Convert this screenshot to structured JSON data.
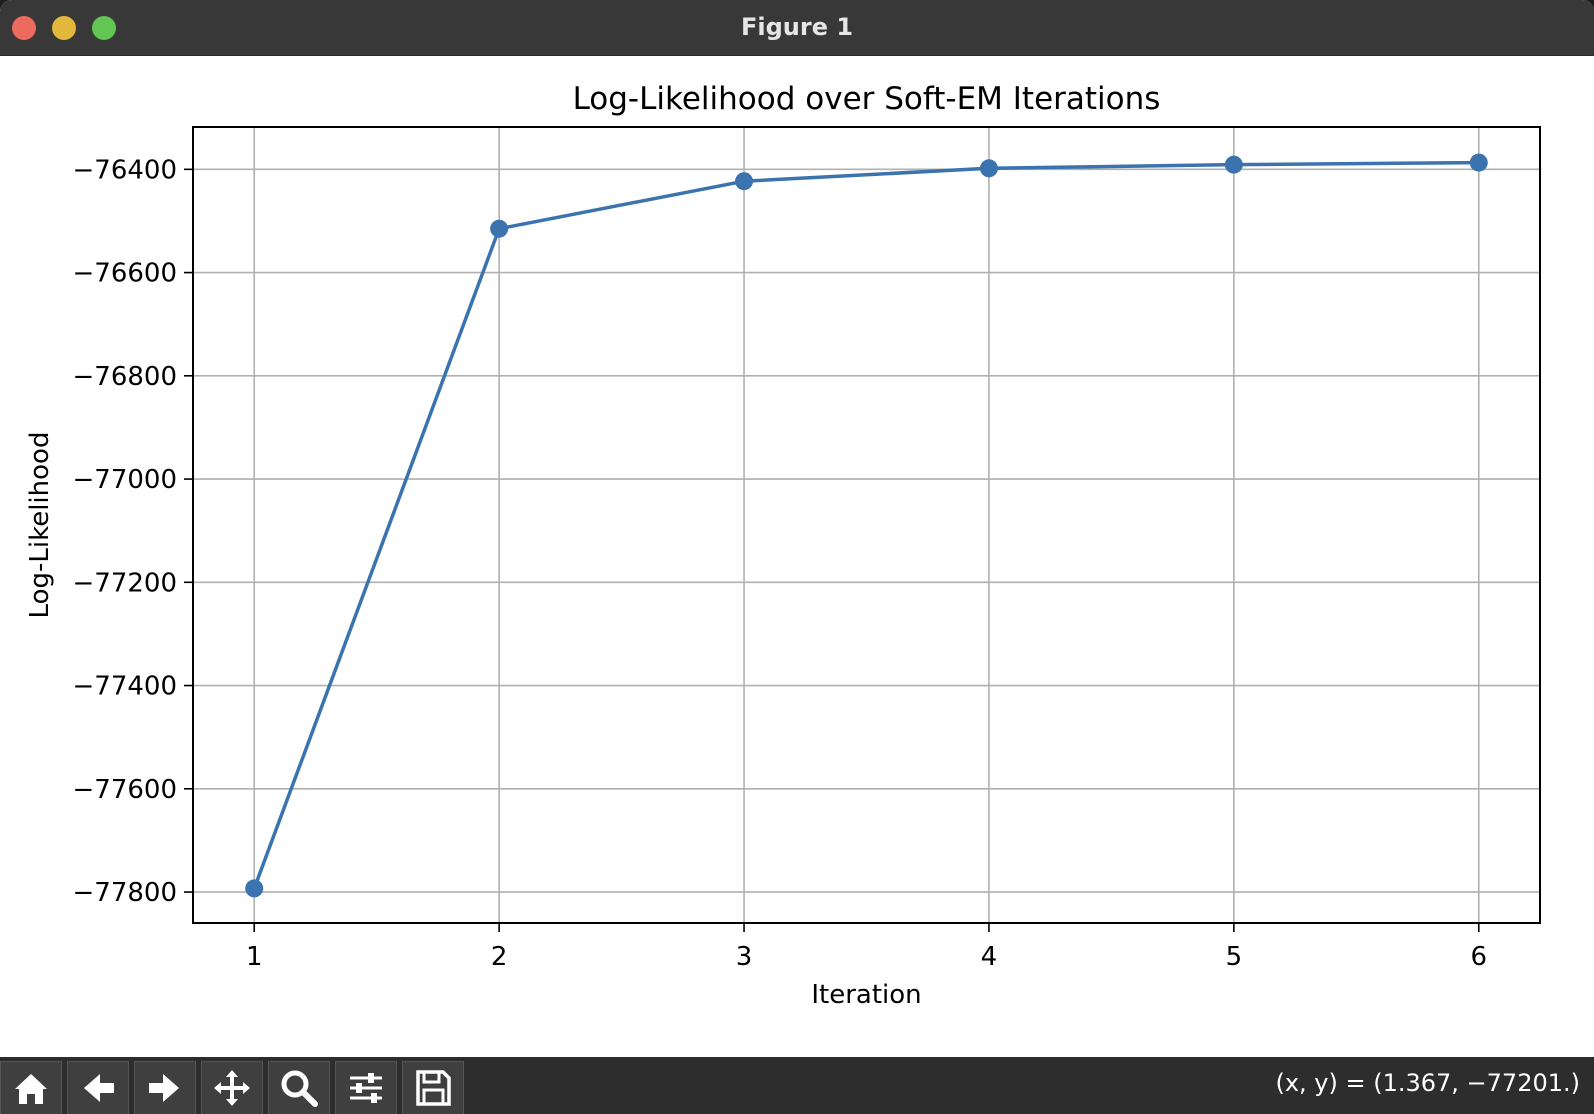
{
  "window": {
    "title": "Figure 1"
  },
  "chart_data": {
    "type": "line",
    "title": "Log-Likelihood over Soft-EM Iterations",
    "xlabel": "Iteration",
    "ylabel": "Log-Likelihood",
    "x": [
      1,
      2,
      3,
      4,
      5,
      6
    ],
    "series": [
      {
        "name": "",
        "values": [
          -77793,
          -76515,
          -76423,
          -76398,
          -76391,
          -76387
        ],
        "color": "#3a73ad",
        "marker": "circle"
      }
    ],
    "xlim": [
      0.75,
      6.25
    ],
    "ylim": [
      -77860,
      -76318
    ],
    "xticks": [
      1,
      2,
      3,
      4,
      5,
      6
    ],
    "xtick_labels": [
      "1",
      "2",
      "3",
      "4",
      "5",
      "6"
    ],
    "yticks": [
      -77800,
      -77600,
      -77400,
      -77200,
      -77000,
      -76800,
      -76600,
      -76400
    ],
    "ytick_labels": [
      "−77800",
      "−77600",
      "−77400",
      "−77200",
      "−77000",
      "−76800",
      "−76600",
      "−76400"
    ],
    "grid": true,
    "legend": "none"
  },
  "toolbar": {
    "buttons": [
      {
        "name": "home-button",
        "icon": "home-icon"
      },
      {
        "name": "back-button",
        "icon": "arrow-left-icon"
      },
      {
        "name": "forward-button",
        "icon": "arrow-right-icon"
      },
      {
        "name": "pan-button",
        "icon": "move-icon"
      },
      {
        "name": "zoom-button",
        "icon": "magnifier-icon"
      },
      {
        "name": "configure-subplots-button",
        "icon": "sliders-icon"
      },
      {
        "name": "save-button",
        "icon": "floppy-disk-icon"
      }
    ],
    "coords": "(x, y) = (1.367, −77201.)"
  }
}
